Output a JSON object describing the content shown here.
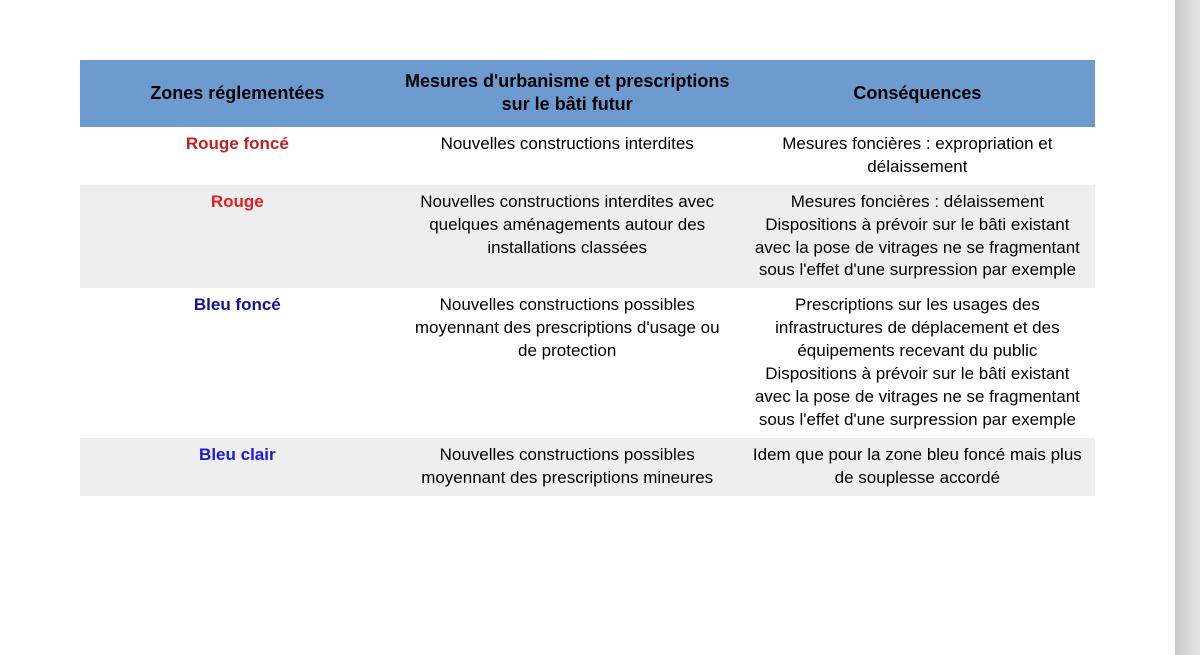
{
  "styles": {
    "header_bg": "#6d9bcf",
    "row_bg": "#ffffff",
    "row_alt_bg": "#eeeeee",
    "text_color": "#000000",
    "rouge_fonce_color": "#c22121",
    "rouge_color": "#e3201f",
    "bleu_fonce_color": "#131393",
    "bleu_clair_color": "#1a1ad6",
    "font_size_header": 18,
    "font_size_body": 17
  },
  "table": {
    "columns": [
      "Zones réglementées",
      "Mesures d'urbanisme et prescriptions sur le bâti futur",
      "Conséquences"
    ],
    "column_widths": [
      "31%",
      "34%",
      "35%"
    ],
    "rows": [
      {
        "zone": "Rouge foncé",
        "zone_color_key": "rouge_fonce_color",
        "alt": false,
        "mesures": "Nouvelles constructions interdites",
        "consequences": "Mesures foncières : expropriation et délaissement"
      },
      {
        "zone": "Rouge",
        "zone_color_key": "rouge_color",
        "alt": true,
        "mesures": "Nouvelles constructions interdites avec quelques aménagements autour des installations classées",
        "consequences": "Mesures foncières : délaissement Dispositions à prévoir sur le bâti existant avec la pose de vitrages ne se fragmentant sous l'effet d'une surpression par exemple"
      },
      {
        "zone": "Bleu foncé",
        "zone_color_key": "bleu_fonce_color",
        "alt": false,
        "mesures": "Nouvelles constructions possibles moyennant des prescriptions d'usage ou de protection",
        "consequences": "Prescriptions sur les usages des infrastructures de déplacement et des équipements recevant du public\nDispositions à prévoir sur le bâti existant avec la pose de vitrages ne se fragmentant sous l'effet d'une surpression par exemple"
      },
      {
        "zone": "Bleu clair",
        "zone_color_key": "bleu_clair_color",
        "alt": true,
        "mesures": "Nouvelles constructions possibles moyennant des prescriptions mineures",
        "consequences": "Idem  que pour la zone bleu foncé mais  plus de souplesse accordé"
      }
    ]
  }
}
